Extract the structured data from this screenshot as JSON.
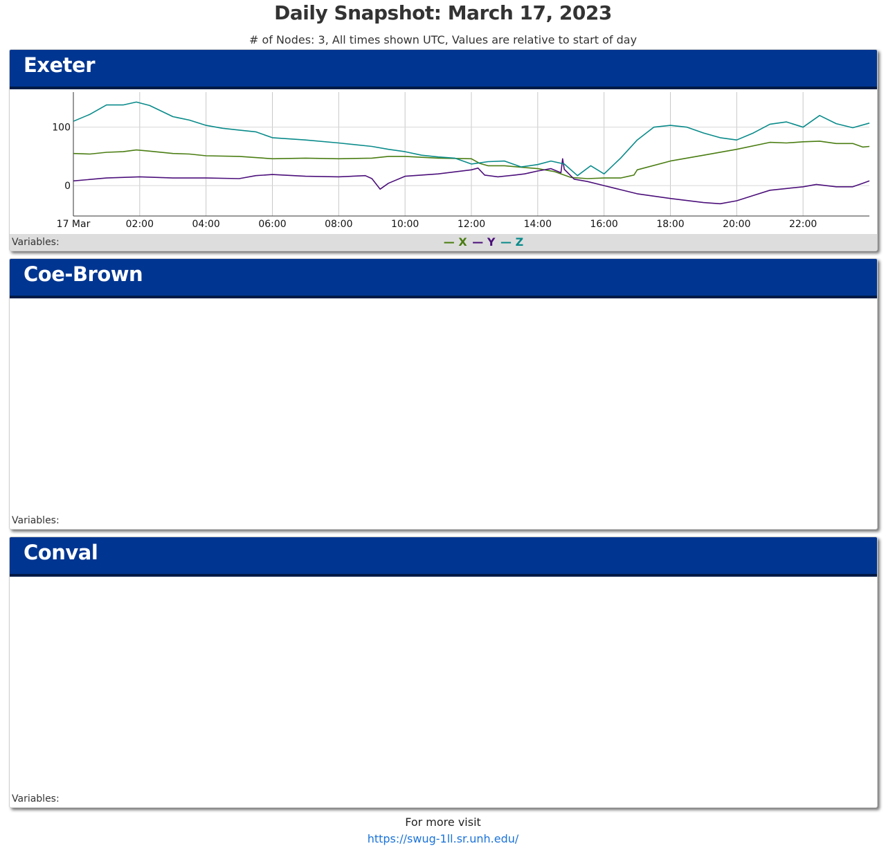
{
  "page": {
    "title": "Daily Snapshot: March 17, 2023",
    "subtitle": "# of Nodes: 3, All times shown UTC, Values are relative to start of day"
  },
  "colors": {
    "header_bg": "#003591",
    "header_border": "#001a47",
    "X": "#4a7d12",
    "Y": "#4b0f7a",
    "Z": "#098a8a",
    "link": "#1a73d9"
  },
  "panels": [
    {
      "name": "Exeter",
      "variables_label": "Variables:",
      "legend": [
        "X",
        "Y",
        "Z"
      ]
    },
    {
      "name": "Coe-Brown",
      "variables_label": "Variables:"
    },
    {
      "name": "Conval",
      "variables_label": "Variables:"
    }
  ],
  "chart_data": {
    "type": "line",
    "title": "",
    "xlabel": "",
    "ylabel": "",
    "x_unit": "hour (UTC), March 17, 2023",
    "xlim": [
      0,
      24
    ],
    "ylim": [
      -52,
      160
    ],
    "grid": true,
    "x_ticks": [
      {
        "x": 0,
        "label": "17 Mar"
      },
      {
        "x": 2,
        "label": "02:00"
      },
      {
        "x": 4,
        "label": "04:00"
      },
      {
        "x": 6,
        "label": "06:00"
      },
      {
        "x": 8,
        "label": "08:00"
      },
      {
        "x": 10,
        "label": "10:00"
      },
      {
        "x": 12,
        "label": "12:00"
      },
      {
        "x": 14,
        "label": "14:00"
      },
      {
        "x": 16,
        "label": "16:00"
      },
      {
        "x": 18,
        "label": "18:00"
      },
      {
        "x": 20,
        "label": "20:00"
      },
      {
        "x": 22,
        "label": "22:00"
      }
    ],
    "y_ticks": [
      {
        "y": 0,
        "label": "0"
      },
      {
        "y": 100,
        "label": "100"
      }
    ],
    "series": [
      {
        "name": "X",
        "color": "#4a7d12",
        "points": [
          [
            0,
            55
          ],
          [
            0.5,
            54
          ],
          [
            1,
            57
          ],
          [
            1.5,
            58
          ],
          [
            1.9,
            61
          ],
          [
            2.3,
            59
          ],
          [
            3,
            55
          ],
          [
            3.5,
            54
          ],
          [
            4,
            51
          ],
          [
            5,
            50
          ],
          [
            6,
            46
          ],
          [
            7,
            47
          ],
          [
            8,
            46
          ],
          [
            9,
            47
          ],
          [
            9.5,
            50
          ],
          [
            10,
            50
          ],
          [
            11,
            47
          ],
          [
            12,
            46
          ],
          [
            12.25,
            38
          ],
          [
            12.5,
            34
          ],
          [
            13,
            34
          ],
          [
            14,
            29
          ],
          [
            14.5,
            24
          ],
          [
            15,
            14
          ],
          [
            15.5,
            12
          ],
          [
            16,
            13
          ],
          [
            16.5,
            13
          ],
          [
            16.9,
            18
          ],
          [
            17,
            27
          ],
          [
            18,
            42
          ],
          [
            19,
            52
          ],
          [
            20,
            62
          ],
          [
            21,
            74
          ],
          [
            21.5,
            73
          ],
          [
            22,
            75
          ],
          [
            22.5,
            76
          ],
          [
            23,
            72
          ],
          [
            23.5,
            72
          ],
          [
            23.8,
            66
          ],
          [
            24,
            67
          ]
        ]
      },
      {
        "name": "Y",
        "color": "#4b0f7a",
        "points": [
          [
            0,
            8
          ],
          [
            1,
            13
          ],
          [
            2,
            15
          ],
          [
            3,
            13
          ],
          [
            4,
            13
          ],
          [
            5,
            12
          ],
          [
            5.5,
            17
          ],
          [
            6,
            19
          ],
          [
            7,
            16
          ],
          [
            8,
            15
          ],
          [
            8.8,
            17
          ],
          [
            9,
            12
          ],
          [
            9.25,
            -6
          ],
          [
            9.5,
            4
          ],
          [
            10,
            16
          ],
          [
            11,
            20
          ],
          [
            12,
            27
          ],
          [
            12.2,
            30
          ],
          [
            12.4,
            18
          ],
          [
            12.8,
            15
          ],
          [
            13.3,
            18
          ],
          [
            13.6,
            20
          ],
          [
            14,
            25
          ],
          [
            14.4,
            29
          ],
          [
            14.7,
            22
          ],
          [
            14.75,
            46
          ],
          [
            14.8,
            28
          ],
          [
            15.1,
            11
          ],
          [
            15.5,
            7
          ],
          [
            16,
            0
          ],
          [
            16.5,
            -7
          ],
          [
            17,
            -14
          ],
          [
            18,
            -22
          ],
          [
            19,
            -29
          ],
          [
            19.5,
            -31
          ],
          [
            20,
            -26
          ],
          [
            20.5,
            -17
          ],
          [
            21,
            -8
          ],
          [
            21.5,
            -5
          ],
          [
            22,
            -2
          ],
          [
            22.4,
            2
          ],
          [
            23,
            -2
          ],
          [
            23.5,
            -2
          ],
          [
            23.8,
            4
          ],
          [
            24,
            8
          ]
        ]
      },
      {
        "name": "Z",
        "color": "#098a8a",
        "points": [
          [
            0,
            110
          ],
          [
            0.5,
            122
          ],
          [
            1,
            138
          ],
          [
            1.5,
            138
          ],
          [
            1.9,
            143
          ],
          [
            2.3,
            137
          ],
          [
            3,
            118
          ],
          [
            3.5,
            112
          ],
          [
            4,
            103
          ],
          [
            4.5,
            98
          ],
          [
            5,
            95
          ],
          [
            5.5,
            92
          ],
          [
            6,
            82
          ],
          [
            7,
            78
          ],
          [
            8,
            73
          ],
          [
            9,
            67
          ],
          [
            9.5,
            62
          ],
          [
            10,
            58
          ],
          [
            10.5,
            52
          ],
          [
            11,
            49
          ],
          [
            11.5,
            47
          ],
          [
            12,
            37
          ],
          [
            12.5,
            41
          ],
          [
            13,
            42
          ],
          [
            13.5,
            32
          ],
          [
            14,
            36
          ],
          [
            14.4,
            42
          ],
          [
            14.8,
            37
          ],
          [
            15.2,
            17
          ],
          [
            15.6,
            34
          ],
          [
            16,
            20
          ],
          [
            16.5,
            47
          ],
          [
            17,
            78
          ],
          [
            17.5,
            100
          ],
          [
            18,
            103
          ],
          [
            18.5,
            100
          ],
          [
            19,
            90
          ],
          [
            19.5,
            82
          ],
          [
            20,
            78
          ],
          [
            20.5,
            90
          ],
          [
            21,
            105
          ],
          [
            21.5,
            109
          ],
          [
            22,
            100
          ],
          [
            22.5,
            120
          ],
          [
            23,
            106
          ],
          [
            23.5,
            99
          ],
          [
            24,
            107
          ]
        ]
      }
    ]
  },
  "footer": {
    "text": "For more visit",
    "link": "https://swug-1ll.sr.unh.edu/"
  }
}
